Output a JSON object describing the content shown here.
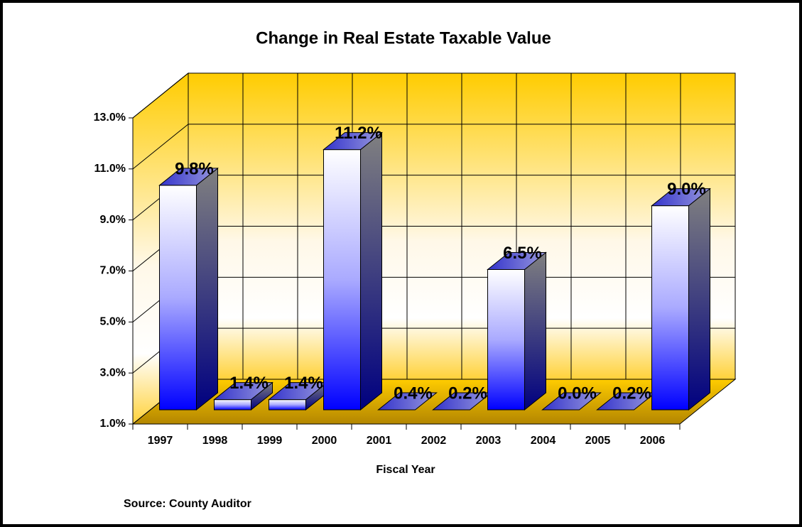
{
  "chart_data": {
    "type": "bar3d",
    "title": "Change in Real Estate Taxable Value",
    "x_label": "Fiscal Year",
    "source": "Source: County Auditor",
    "categories": [
      "1997",
      "1998",
      "1999",
      "2000",
      "2001",
      "2002",
      "2003",
      "2004",
      "2005",
      "2006"
    ],
    "values": [
      9.8,
      1.4,
      1.4,
      11.2,
      0.4,
      0.2,
      6.5,
      0.0,
      0.2,
      9.0
    ],
    "value_labels": [
      "9.8%",
      "1.4%",
      "1.4%",
      "11.2%",
      "0.4%",
      "0.2%",
      "6.5%",
      "0.0%",
      "0.2%",
      "9.0%"
    ],
    "ylim": [
      1,
      13
    ],
    "yticks": [
      {
        "value": 1,
        "label": "1.0%"
      },
      {
        "value": 3,
        "label": "3.0%"
      },
      {
        "value": 5,
        "label": "5.0%"
      },
      {
        "value": 7,
        "label": "7.0%"
      },
      {
        "value": 9,
        "label": "9.0%"
      },
      {
        "value": 11,
        "label": "11.0%"
      },
      {
        "value": 13,
        "label": "13.0%"
      }
    ],
    "grid": true
  }
}
